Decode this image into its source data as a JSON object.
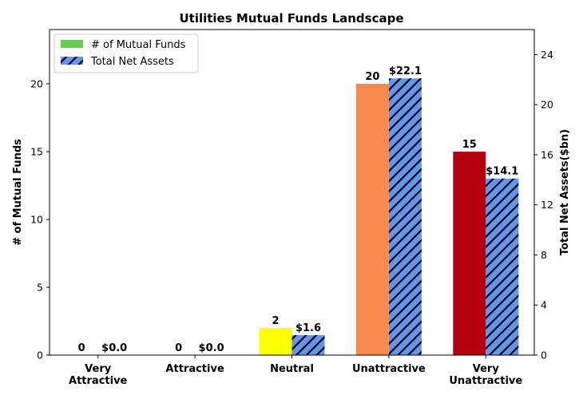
{
  "chart_data": {
    "type": "bar",
    "title": "Utilities Mutual Funds Landscape",
    "categories": [
      [
        "Very",
        "Attractive"
      ],
      [
        "Attractive"
      ],
      [
        "Neutral"
      ],
      [
        "Unattractive"
      ],
      [
        "Very",
        "Unattractive"
      ]
    ],
    "series": [
      {
        "name": "# of Mutual Funds",
        "axis": "left",
        "values": [
          0,
          0,
          2,
          20,
          15
        ],
        "labels": [
          "0",
          "0",
          "2",
          "20",
          "15"
        ],
        "colors": [
          "#00a651",
          "#6cc24a",
          "#ffff00",
          "#f88a4f",
          "#b5000e"
        ],
        "legend_color": "#66cc55"
      },
      {
        "name": "Total Net Assets",
        "axis": "right",
        "values": [
          0.0,
          0.0,
          1.6,
          22.1,
          14.1
        ],
        "labels": [
          "$0.0",
          "$0.0",
          "$1.6",
          "$22.1",
          "$14.1"
        ],
        "color": "#6495ed",
        "hatch": "diagonal"
      }
    ],
    "ylabel": "# of Mutual Funds",
    "ylim": [
      0,
      24
    ],
    "yticks": [
      0,
      5,
      10,
      15,
      20
    ],
    "y2label": "Total Net Assets($bn)",
    "y2lim": [
      0,
      26
    ],
    "y2ticks": [
      0,
      4,
      8,
      12,
      16,
      20,
      24
    ],
    "legend_position": "top-left",
    "grid": false
  }
}
